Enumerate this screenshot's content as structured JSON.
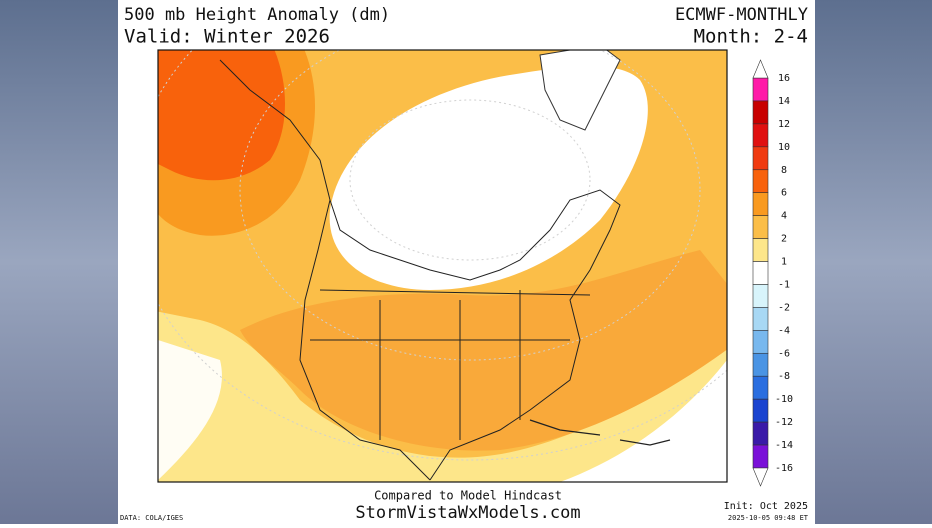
{
  "header": {
    "title": "500 mb Height Anomaly (dm)",
    "valid": "Valid: Winter 2026",
    "model": "ECMWF-MONTHLY",
    "month": "Month: 2-4"
  },
  "footer": {
    "compared": "Compared to Model Hindcast",
    "site": "StormVistaWxModels.com",
    "init": "Init: Oct 2025",
    "timestamp": "2025-10-05 09:48 ET",
    "data_source": "DATA: COLA/IGES"
  },
  "colorbar": {
    "labels": [
      16,
      14,
      12,
      10,
      8,
      6,
      4,
      2,
      1,
      -1,
      -2,
      -4,
      -6,
      -8,
      -10,
      -12,
      -14,
      -16
    ],
    "colors": [
      "#ff1aa8",
      "#c80000",
      "#e01010",
      "#f03a10",
      "#f8620c",
      "#f99a20",
      "#fbbe48",
      "#fde68a",
      "#ffffff",
      "#d8f4fb",
      "#a8d8f4",
      "#78b8ee",
      "#4a94e4",
      "#2a6ee0",
      "#1a44d0",
      "#3a1aa8",
      "#7a10d8"
    ]
  }
}
